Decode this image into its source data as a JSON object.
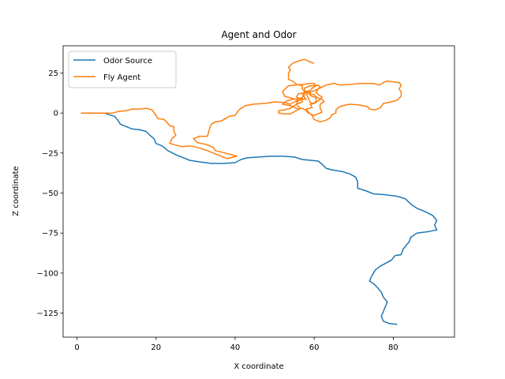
{
  "chart_data": {
    "type": "line",
    "title": "Agent and Odor",
    "xlabel": "X coordinate",
    "ylabel": "Z coordinate",
    "xlim": [
      -3.5,
      95.5
    ],
    "ylim": [
      -140,
      42
    ],
    "xticks": [
      0,
      20,
      40,
      60,
      80
    ],
    "yticks": [
      25,
      0,
      -25,
      -50,
      -75,
      -100,
      -125
    ],
    "grid": false,
    "legend_position": "upper-left",
    "series": [
      {
        "name": "Odor Source",
        "color": "#1f77b4",
        "points": [
          [
            7,
            0
          ],
          [
            8,
            -1
          ],
          [
            9.5,
            -2
          ],
          [
            10.5,
            -5
          ],
          [
            11,
            -7
          ],
          [
            12.5,
            -8.5
          ],
          [
            14,
            -10
          ],
          [
            16,
            -10.5
          ],
          [
            17.5,
            -11.5
          ],
          [
            18.5,
            -14
          ],
          [
            19.5,
            -16
          ],
          [
            20,
            -19
          ],
          [
            21.5,
            -20.5
          ],
          [
            23,
            -23.5
          ],
          [
            25,
            -26
          ],
          [
            27,
            -28
          ],
          [
            28.5,
            -29.5
          ],
          [
            31,
            -30.5
          ],
          [
            34,
            -31.5
          ],
          [
            37,
            -31.5
          ],
          [
            40,
            -31
          ],
          [
            41.5,
            -29
          ],
          [
            43,
            -28
          ],
          [
            46,
            -27.5
          ],
          [
            49,
            -27
          ],
          [
            52,
            -27
          ],
          [
            55,
            -27.5
          ],
          [
            57,
            -29
          ],
          [
            59,
            -29.5
          ],
          [
            61,
            -30
          ],
          [
            62,
            -32
          ],
          [
            63,
            -34.5
          ],
          [
            64.5,
            -35.5
          ],
          [
            67,
            -36.5
          ],
          [
            69,
            -38
          ],
          [
            70.5,
            -40
          ],
          [
            71,
            -43
          ],
          [
            71,
            -47
          ],
          [
            73,
            -48.5
          ],
          [
            75,
            -50.5
          ],
          [
            78,
            -51
          ],
          [
            81,
            -52
          ],
          [
            83,
            -53.5
          ],
          [
            84.5,
            -57
          ],
          [
            86,
            -59.5
          ],
          [
            88,
            -61.5
          ],
          [
            90,
            -64
          ],
          [
            91,
            -67
          ],
          [
            90.5,
            -70
          ],
          [
            91,
            -73
          ],
          [
            89,
            -74
          ],
          [
            86,
            -75
          ],
          [
            84.5,
            -77.5
          ],
          [
            84,
            -80.5
          ],
          [
            83.5,
            -82
          ],
          [
            82.5,
            -85
          ],
          [
            82,
            -88.5
          ],
          [
            80.5,
            -89
          ],
          [
            79.5,
            -92
          ],
          [
            78,
            -94
          ],
          [
            76.5,
            -96
          ],
          [
            75.5,
            -98
          ],
          [
            75,
            -100
          ],
          [
            74.5,
            -102
          ],
          [
            74,
            -105
          ],
          [
            75,
            -106.5
          ],
          [
            76,
            -109
          ],
          [
            77,
            -112
          ],
          [
            77.5,
            -115
          ],
          [
            78.5,
            -118
          ],
          [
            78,
            -121
          ],
          [
            77.5,
            -124
          ],
          [
            77,
            -127
          ],
          [
            77.5,
            -130
          ],
          [
            79,
            -131.5
          ],
          [
            81,
            -132
          ]
        ]
      },
      {
        "name": "Fly Agent",
        "color": "#ff7f0e",
        "points": [
          [
            1,
            0
          ],
          [
            5,
            0
          ],
          [
            9,
            0
          ],
          [
            10.5,
            1
          ],
          [
            12.5,
            1.5
          ],
          [
            14,
            2.5
          ],
          [
            16,
            2.5
          ],
          [
            17.5,
            3
          ],
          [
            19,
            2
          ],
          [
            20,
            -1.5
          ],
          [
            20.5,
            -3.5
          ],
          [
            22,
            -4
          ],
          [
            23,
            -6.5
          ],
          [
            23.5,
            -8
          ],
          [
            24.5,
            -8.5
          ],
          [
            24.5,
            -11
          ],
          [
            25,
            -14
          ],
          [
            24,
            -16
          ],
          [
            23.5,
            -19
          ],
          [
            25,
            -20
          ],
          [
            26.5,
            -21
          ],
          [
            28.5,
            -20.5
          ],
          [
            30.5,
            -21.5
          ],
          [
            33,
            -23.5
          ],
          [
            35.5,
            -26
          ],
          [
            38,
            -28.5
          ],
          [
            40.5,
            -27
          ],
          [
            37.5,
            -25
          ],
          [
            35,
            -23.5
          ],
          [
            34.5,
            -21.5
          ],
          [
            32.5,
            -19.5
          ],
          [
            30.5,
            -18.5
          ],
          [
            29.5,
            -16
          ],
          [
            31,
            -14.5
          ],
          [
            33,
            -14.5
          ],
          [
            33.5,
            -10
          ],
          [
            34,
            -7
          ],
          [
            35,
            -5.5
          ],
          [
            36.5,
            -5
          ],
          [
            37.5,
            -3.5
          ],
          [
            38.5,
            -2
          ],
          [
            40,
            -1.5
          ],
          [
            41,
            2
          ],
          [
            42.5,
            4.5
          ],
          [
            44.5,
            5.5
          ],
          [
            47.5,
            6
          ],
          [
            50,
            7
          ],
          [
            52.5,
            6.5
          ],
          [
            54,
            5.5
          ],
          [
            55,
            7
          ],
          [
            56.5,
            8
          ],
          [
            57,
            9
          ],
          [
            58,
            8.5
          ],
          [
            57.5,
            10
          ],
          [
            57,
            12
          ],
          [
            58,
            13.5
          ],
          [
            59,
            13.5
          ],
          [
            59,
            11
          ],
          [
            60.5,
            9.5
          ],
          [
            60.5,
            7.5
          ],
          [
            60,
            6
          ],
          [
            59,
            5.5
          ],
          [
            59.5,
            3.5
          ],
          [
            58,
            2.5
          ],
          [
            58.5,
            0.5
          ],
          [
            59.5,
            -1.5
          ],
          [
            60,
            -4
          ],
          [
            61.5,
            -5.5
          ],
          [
            63,
            -4.5
          ],
          [
            64,
            -3
          ],
          [
            64.5,
            -1
          ],
          [
            65.5,
            0
          ],
          [
            65.5,
            2
          ],
          [
            66.5,
            4
          ],
          [
            68,
            5
          ],
          [
            69,
            5.5
          ],
          [
            71.5,
            5
          ],
          [
            73.5,
            4
          ],
          [
            74,
            2.5
          ],
          [
            75.5,
            2
          ],
          [
            76.5,
            3
          ],
          [
            77,
            4
          ],
          [
            77.5,
            6
          ],
          [
            79.5,
            7
          ],
          [
            81,
            8
          ],
          [
            82,
            10.5
          ],
          [
            82,
            13
          ],
          [
            81.5,
            15
          ],
          [
            82,
            17.5
          ],
          [
            81.5,
            19
          ],
          [
            80,
            19.5
          ],
          [
            78.5,
            20
          ],
          [
            77.5,
            19
          ],
          [
            76.5,
            17.5
          ],
          [
            75,
            18.5
          ],
          [
            73.5,
            18.5
          ],
          [
            71.5,
            18.5
          ],
          [
            69.5,
            18
          ],
          [
            66.5,
            17.5
          ],
          [
            65,
            18.5
          ],
          [
            63,
            17.5
          ],
          [
            61,
            15
          ],
          [
            60.5,
            13
          ],
          [
            61,
            11.5
          ],
          [
            62,
            10
          ],
          [
            61,
            7.5
          ],
          [
            60,
            6
          ],
          [
            59,
            6.5
          ],
          [
            58.5,
            9.5
          ],
          [
            58,
            12
          ],
          [
            57.5,
            15.5
          ],
          [
            59,
            17
          ],
          [
            61,
            17.5
          ],
          [
            61.5,
            16.5
          ],
          [
            61,
            15
          ],
          [
            59.5,
            13.5
          ],
          [
            57.5,
            12.5
          ],
          [
            56,
            12
          ],
          [
            55.5,
            10
          ],
          [
            57,
            8.5
          ],
          [
            57,
            7
          ],
          [
            55.5,
            5.5
          ],
          [
            54,
            3
          ],
          [
            52.5,
            2
          ],
          [
            51,
            1.5
          ],
          [
            51,
            0
          ],
          [
            52.5,
            -0.5
          ],
          [
            54,
            -0.5
          ],
          [
            55.5,
            1.5
          ],
          [
            56.5,
            3
          ],
          [
            55.5,
            5.5
          ],
          [
            56,
            8
          ],
          [
            54,
            9.5
          ],
          [
            52.5,
            10.5
          ],
          [
            52,
            13.5
          ],
          [
            53.5,
            17
          ],
          [
            55,
            17.5
          ],
          [
            57.5,
            18
          ],
          [
            59,
            18.5
          ],
          [
            60,
            18.5
          ],
          [
            60.5,
            17
          ],
          [
            59.5,
            15.5
          ],
          [
            59,
            14
          ],
          [
            58,
            13.5
          ],
          [
            58.5,
            12
          ],
          [
            60,
            11.5
          ],
          [
            60.5,
            10
          ],
          [
            62,
            8.5
          ],
          [
            62.5,
            7
          ],
          [
            61.5,
            5.5
          ],
          [
            61.5,
            3
          ],
          [
            62,
            0.5
          ],
          [
            60,
            -1.5
          ],
          [
            58.5,
            0
          ],
          [
            58,
            1.5
          ],
          [
            57,
            3
          ],
          [
            56,
            2.5
          ],
          [
            54,
            4.5
          ],
          [
            52,
            5.5
          ],
          [
            53,
            7.5
          ],
          [
            54.5,
            8.5
          ],
          [
            56.5,
            9
          ],
          [
            57.5,
            11
          ],
          [
            57.5,
            13.5
          ],
          [
            57,
            15
          ],
          [
            57,
            17
          ],
          [
            55.5,
            18
          ],
          [
            54.5,
            20
          ],
          [
            53.5,
            21
          ],
          [
            53.5,
            25
          ],
          [
            54,
            27
          ],
          [
            53.5,
            28.5
          ],
          [
            54.5,
            31
          ],
          [
            56,
            32.5
          ],
          [
            57.5,
            33.5
          ],
          [
            59,
            32
          ],
          [
            60,
            31
          ]
        ]
      }
    ]
  }
}
